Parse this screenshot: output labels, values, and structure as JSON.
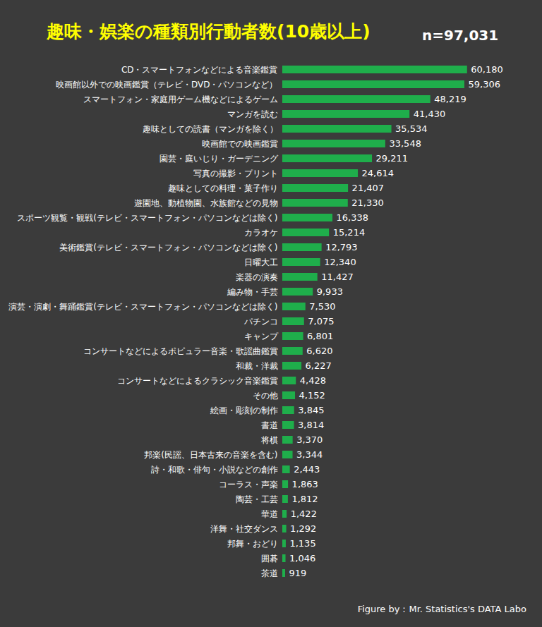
{
  "chart_data": {
    "type": "bar",
    "orientation": "horizontal",
    "title": "趣味・娯楽の種類別行動者数(10歳以上)",
    "annotation": "n=97,031",
    "caption": "Figure by：Mr. Statistics's DATA Labo",
    "categories": [
      "CD・スマートフォンなどによる音楽鑑賞",
      "映画館以外での映画鑑賞（テレビ・DVD・パソコンなど）",
      "スマートフォン・家庭用ゲーム機などによるゲーム",
      "マンガを読む",
      "趣味としての読書（マンガを除く）",
      "映画館での映画鑑賞",
      "園芸・庭いじり・ガーデニング",
      "写真の撮影・プリント",
      "趣味としての料理・菓子作り",
      "遊園地、動植物園、水族館などの見物",
      "スポーツ観覧・観戦(テレビ・スマートフォン・パソコンなどは除く)",
      "カラオケ",
      "美術鑑賞(テレビ・スマートフォン・パソコンなどは除く)",
      "日曜大工",
      "楽器の演奏",
      "編み物・手芸",
      "演芸・演劇・舞踊鑑賞(テレビ・スマートフォン・パソコンなどは除く)",
      "パチンコ",
      "キャンプ",
      "コンサートなどによるポピュラー音楽・歌謡曲鑑賞",
      "和裁・洋裁",
      "コンサートなどによるクラシック音楽鑑賞",
      "その他",
      "絵画・彫刻の制作",
      "書道",
      "将棋",
      "邦楽(民謡、日本古来の音楽を含む)",
      "詩・和歌・俳句・小説などの創作",
      "コーラス・声楽",
      "陶芸・工芸",
      "華道",
      "洋舞・社交ダンス",
      "邦舞・おどり",
      "囲碁",
      "茶道"
    ],
    "values": [
      60180,
      59306,
      48219,
      41430,
      35534,
      33548,
      29211,
      24614,
      21407,
      21330,
      16338,
      15214,
      12793,
      12340,
      11427,
      9933,
      7530,
      7075,
      6801,
      6620,
      6227,
      4428,
      4152,
      3845,
      3814,
      3370,
      3344,
      2443,
      1863,
      1812,
      1422,
      1292,
      1135,
      1046,
      919
    ],
    "value_labels": [
      "60,180",
      "59,306",
      "48,219",
      "41,430",
      "35,534",
      "33,548",
      "29,211",
      "24,614",
      "21,407",
      "21,330",
      "16,338",
      "15,214",
      "12,793",
      "12,340",
      "11,427",
      "9,933",
      "7,530",
      "7,075",
      "6,801",
      "6,620",
      "6,227",
      "4,428",
      "4,152",
      "3,845",
      "3,814",
      "3,370",
      "3,344",
      "2,443",
      "1,863",
      "1,812",
      "1,422",
      "1,292",
      "1,135",
      "1,046",
      "919"
    ],
    "color": "#1fae4b",
    "xlim": [
      0,
      80000
    ],
    "grid": false,
    "data_labels": true,
    "tick_labels": "y"
  }
}
